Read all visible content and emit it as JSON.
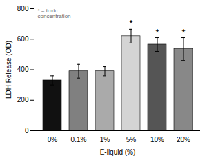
{
  "chart_data": {
    "type": "bar",
    "categories": [
      "0%",
      "0.1%",
      "1%",
      "5%",
      "10%",
      "20%"
    ],
    "values": [
      330,
      390,
      390,
      620,
      565,
      535
    ],
    "errors": [
      30,
      45,
      30,
      45,
      45,
      75
    ],
    "colors": [
      "#111111",
      "#808080",
      "#aaaaaa",
      "#d4d4d4",
      "#555555",
      "#888888"
    ],
    "stars": [
      false,
      false,
      false,
      true,
      true,
      true
    ],
    "star_text": "*",
    "annotation": "* = toxic\nconcentration",
    "xlabel": "E-liquid (%)",
    "ylabel": "LDH Release (OD)",
    "ylim": [
      0,
      800
    ],
    "yticks": [
      0,
      200,
      400,
      600,
      800
    ],
    "grid": false
  }
}
